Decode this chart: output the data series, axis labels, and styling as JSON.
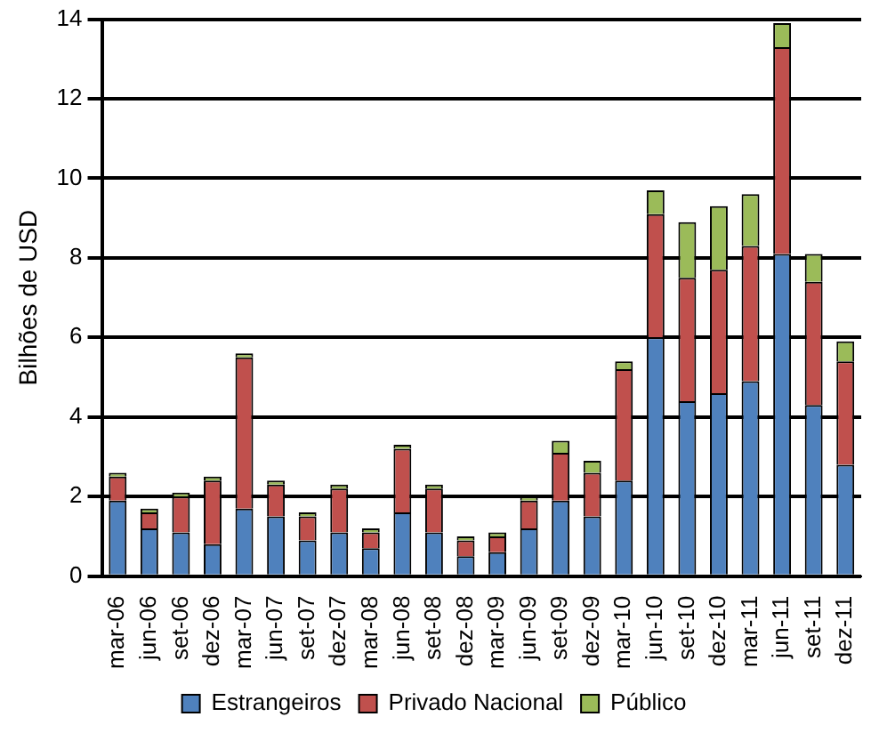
{
  "chart_data": {
    "type": "bar",
    "stacked": true,
    "ylabel": "Bilhões de USD",
    "categories": [
      "mar-06",
      "jun-06",
      "set-06",
      "dez-06",
      "mar-07",
      "jun-07",
      "set-07",
      "dez-07",
      "mar-08",
      "jun-08",
      "set-08",
      "dez-08",
      "mar-09",
      "jun-09",
      "set-09",
      "dez-09",
      "mar-10",
      "jun-10",
      "set-10",
      "dez-10",
      "mar-11",
      "jun-11",
      "set-11",
      "dez-11"
    ],
    "series": [
      {
        "name": "Estrangeiros",
        "color": "#4f81bd",
        "values": [
          1.9,
          1.2,
          1.1,
          0.8,
          1.7,
          1.5,
          0.9,
          1.1,
          0.7,
          1.6,
          1.1,
          0.5,
          0.6,
          1.2,
          1.9,
          1.5,
          2.4,
          6.0,
          4.4,
          4.6,
          4.9,
          8.1,
          4.3,
          2.8
        ]
      },
      {
        "name": "Privado Nacional",
        "color": "#c0504d",
        "values": [
          0.6,
          0.4,
          0.9,
          1.6,
          3.8,
          0.8,
          0.6,
          1.1,
          0.4,
          1.6,
          1.1,
          0.4,
          0.4,
          0.7,
          1.2,
          1.1,
          2.8,
          3.1,
          3.1,
          3.1,
          3.4,
          5.2,
          3.1,
          2.6
        ]
      },
      {
        "name": "Público",
        "color": "#9bbb59",
        "values": [
          0.1,
          0.1,
          0.1,
          0.1,
          0.1,
          0.1,
          0.1,
          0.1,
          0.1,
          0.1,
          0.1,
          0.1,
          0.1,
          0.1,
          0.3,
          0.3,
          0.2,
          0.6,
          1.4,
          1.6,
          1.3,
          0.6,
          0.7,
          0.5
        ]
      }
    ],
    "ylim": [
      0,
      14
    ],
    "yticks": [
      0,
      2,
      4,
      6,
      8,
      10,
      12,
      14
    ],
    "grid": "y",
    "legend": "bottom"
  }
}
